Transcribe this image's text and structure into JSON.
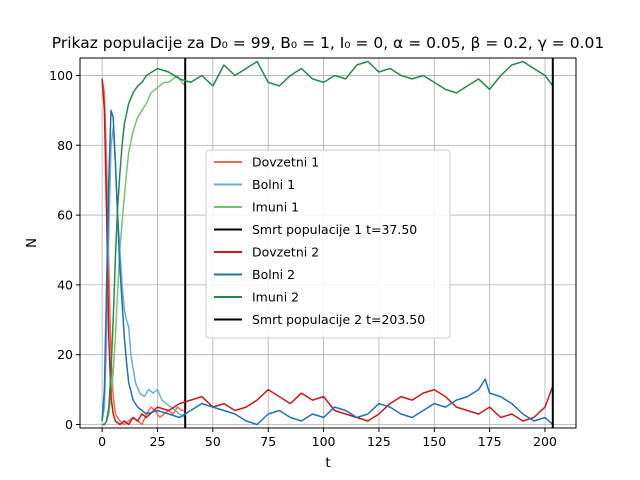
{
  "chart_data": {
    "type": "line",
    "title": "Prikaz populacije za D₀ = 99, B₀ = 1, I₀ = 0, α = 0.05, β = 0.2, γ = 0.01",
    "xlabel": "t",
    "ylabel": "N",
    "xlim": [
      -10,
      214
    ],
    "ylim": [
      -1,
      105
    ],
    "xticks": [
      0,
      25,
      50,
      75,
      100,
      125,
      150,
      175,
      200
    ],
    "yticks": [
      0,
      20,
      40,
      60,
      80,
      100
    ],
    "grid": true,
    "legend_position": "center",
    "series": [
      {
        "name": "Dovzetni 1",
        "color": "#f4694b",
        "x": [
          0,
          1,
          2,
          3,
          4,
          5,
          6,
          8,
          10,
          12,
          14,
          16,
          18,
          20,
          22,
          24,
          26,
          28,
          30,
          32,
          34,
          36,
          37.5
        ],
        "y": [
          99,
          95,
          75,
          45,
          20,
          8,
          3,
          1,
          0,
          1,
          2,
          1,
          0,
          3,
          5,
          4,
          2,
          3,
          4,
          3,
          5,
          4,
          4
        ]
      },
      {
        "name": "Bolni 1",
        "color": "#6baed6",
        "x": [
          0,
          1,
          2,
          3,
          4,
          5,
          6,
          7,
          8,
          9,
          10,
          11,
          12,
          13,
          15,
          17,
          19,
          21,
          23,
          25,
          27,
          29,
          31,
          33,
          35,
          37.5
        ],
        "y": [
          1,
          5,
          25,
          55,
          80,
          85,
          75,
          60,
          50,
          40,
          33,
          30,
          28,
          20,
          12,
          9,
          8,
          10,
          9,
          10,
          7,
          6,
          5,
          4,
          3,
          2
        ]
      },
      {
        "name": "Imuni 1",
        "color": "#74c476",
        "x": [
          0,
          1,
          2,
          3,
          4,
          5,
          6,
          7,
          8,
          9,
          10,
          11,
          12,
          14,
          16,
          18,
          20,
          22,
          24,
          26,
          28,
          30,
          32,
          34,
          36,
          37.5
        ],
        "y": [
          0,
          0,
          1,
          3,
          8,
          15,
          25,
          38,
          50,
          58,
          65,
          72,
          78,
          84,
          88,
          90,
          92,
          95,
          96,
          97,
          98,
          98,
          99,
          100,
          98,
          97
        ]
      },
      {
        "name": "Smrt populacije 1 t=37.50",
        "color": "#000000",
        "x": [
          37.5,
          37.5
        ],
        "y": [
          -1,
          105
        ]
      },
      {
        "name": "Dovzetni 2",
        "color": "#cb181d",
        "x": [
          0,
          1,
          2,
          3,
          4,
          5,
          6,
          8,
          10,
          12,
          14,
          16,
          18,
          20,
          25,
          30,
          35,
          40,
          45,
          50,
          55,
          60,
          65,
          70,
          75,
          80,
          85,
          90,
          95,
          100,
          105,
          110,
          115,
          120,
          125,
          130,
          135,
          140,
          145,
          150,
          155,
          160,
          165,
          170,
          175,
          180,
          185,
          190,
          195,
          200,
          203.5
        ],
        "y": [
          99,
          90,
          60,
          25,
          8,
          3,
          1,
          0,
          1,
          0,
          2,
          1,
          3,
          2,
          5,
          4,
          6,
          7,
          8,
          5,
          6,
          4,
          5,
          7,
          10,
          8,
          6,
          9,
          7,
          8,
          4,
          3,
          2,
          1,
          3,
          6,
          8,
          7,
          9,
          10,
          8,
          5,
          4,
          3,
          5,
          2,
          3,
          1,
          2,
          5,
          11
        ]
      },
      {
        "name": "Bolni 2",
        "color": "#2171b5",
        "x": [
          0,
          1,
          2,
          3,
          4,
          5,
          6,
          7,
          8,
          9,
          10,
          11,
          12,
          14,
          16,
          18,
          20,
          25,
          30,
          35,
          40,
          45,
          50,
          55,
          60,
          65,
          70,
          75,
          80,
          85,
          90,
          95,
          100,
          105,
          110,
          115,
          120,
          125,
          130,
          135,
          140,
          145,
          150,
          155,
          160,
          165,
          170,
          173,
          175,
          180,
          185,
          190,
          195,
          200,
          203.5
        ],
        "y": [
          1,
          10,
          40,
          70,
          90,
          88,
          75,
          60,
          45,
          35,
          25,
          18,
          12,
          7,
          5,
          4,
          3,
          4,
          3,
          2,
          4,
          6,
          5,
          4,
          3,
          1,
          0,
          3,
          4,
          2,
          1,
          3,
          2,
          5,
          4,
          2,
          3,
          6,
          5,
          3,
          2,
          4,
          6,
          5,
          7,
          8,
          10,
          13,
          9,
          8,
          6,
          3,
          1,
          2,
          0
        ]
      },
      {
        "name": "Imuni 2",
        "color": "#238b45",
        "x": [
          0,
          1,
          2,
          3,
          4,
          5,
          6,
          7,
          8,
          9,
          10,
          12,
          14,
          16,
          18,
          20,
          25,
          30,
          35,
          40,
          45,
          50,
          55,
          60,
          65,
          70,
          75,
          80,
          85,
          90,
          95,
          100,
          105,
          110,
          115,
          120,
          125,
          130,
          135,
          140,
          145,
          150,
          155,
          160,
          165,
          170,
          175,
          180,
          185,
          190,
          195,
          200,
          203.5
        ],
        "y": [
          0,
          0,
          1,
          5,
          15,
          30,
          48,
          62,
          72,
          80,
          86,
          92,
          95,
          97,
          98,
          100,
          102,
          101,
          99,
          98,
          100,
          97,
          103,
          100,
          102,
          104,
          98,
          97,
          100,
          102,
          99,
          98,
          100,
          99,
          103,
          104,
          101,
          102,
          100,
          99,
          100,
          98,
          96,
          95,
          97,
          99,
          96,
          100,
          103,
          104,
          102,
          100,
          97
        ]
      },
      {
        "name": "Smrt populacije 2 t=203.50",
        "color": "#000000",
        "x": [
          203.5,
          203.5
        ],
        "y": [
          -1,
          105
        ]
      }
    ]
  }
}
